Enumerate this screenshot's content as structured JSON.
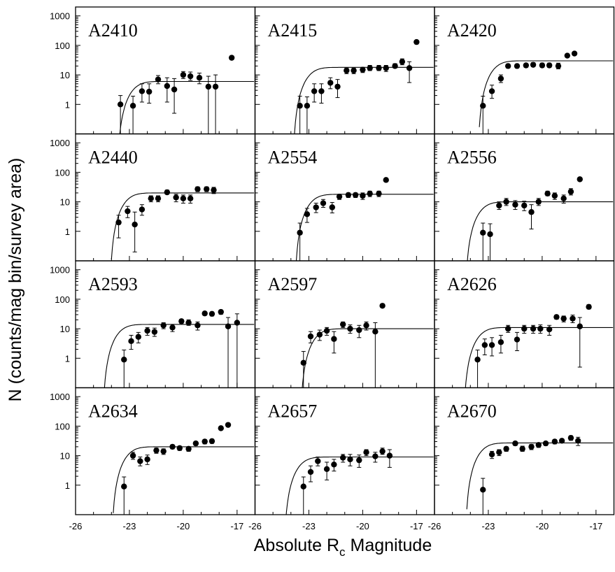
{
  "chart_data": {
    "type": "scatter",
    "layout": "small-multiples",
    "rows": 4,
    "cols": 3,
    "xlabel": "Absolute R",
    "xlabel_subscript": "c",
    "xlabel_suffix": " Magnitude",
    "ylabel": "N (counts/mag bin/survey area)",
    "xlim": [
      -26,
      -16
    ],
    "x_ticks": [
      -26,
      -23,
      -20,
      -17
    ],
    "y_scale": "log",
    "ylim": [
      0.1,
      2000
    ],
    "y_ticks": [
      1,
      10,
      100,
      1000
    ],
    "y_tick_labels": [
      "1",
      "10",
      "100",
      "1000"
    ],
    "panels": [
      {
        "name": "A2410",
        "points": [
          [
            -23.5,
            1,
            0.1,
            2
          ],
          [
            -22.8,
            0.9,
            0.1,
            1.9
          ],
          [
            -22.3,
            2.8,
            1.2,
            5
          ],
          [
            -21.9,
            2.7,
            1.1,
            5
          ],
          [
            -21.4,
            7,
            5,
            9.5
          ],
          [
            -20.9,
            4.2,
            1.2,
            8
          ],
          [
            -20.5,
            3.2,
            0.5,
            7.5
          ],
          [
            -20,
            10,
            7.5,
            13
          ],
          [
            -19.6,
            9,
            6.5,
            12.5
          ],
          [
            -19.1,
            8,
            5,
            11.5
          ],
          [
            -18.6,
            4,
            0.1,
            9
          ],
          [
            -18.2,
            4,
            0.1,
            10
          ],
          [
            -17.3,
            38,
            33,
            44
          ]
        ],
        "fit": {
          "amp": 6,
          "m0": -23.7
        }
      },
      {
        "name": "A2415",
        "points": [
          [
            -23.5,
            0.9,
            0.1,
            1.9
          ],
          [
            -23.1,
            0.9,
            0.1,
            1.8
          ],
          [
            -22.7,
            2.8,
            1.2,
            5
          ],
          [
            -22.3,
            2.8,
            1.1,
            5
          ],
          [
            -21.8,
            5.4,
            3.4,
            8
          ],
          [
            -21.4,
            4,
            1.7,
            7
          ],
          [
            -20.9,
            14,
            11,
            17
          ],
          [
            -20.5,
            14,
            11,
            17
          ],
          [
            -20,
            15,
            12,
            18
          ],
          [
            -19.6,
            17,
            14,
            21
          ],
          [
            -19.1,
            17,
            14,
            21
          ],
          [
            -18.7,
            17,
            13,
            21
          ],
          [
            -18.2,
            20,
            17,
            24
          ],
          [
            -17.8,
            28,
            22,
            35
          ],
          [
            -17.4,
            17,
            5.5,
            28
          ],
          [
            -17,
            130,
            125,
            135
          ]
        ],
        "fit": {
          "amp": 18,
          "m0": -23.9
        }
      },
      {
        "name": "A2420",
        "points": [
          [
            -23.3,
            0.9,
            0.1,
            1.9
          ],
          [
            -22.8,
            2.8,
            1.6,
            4.5
          ],
          [
            -22.3,
            7.5,
            5.5,
            10
          ],
          [
            -21.9,
            20,
            17,
            23
          ],
          [
            -21.4,
            20,
            17,
            23
          ],
          [
            -20.9,
            21,
            18,
            24
          ],
          [
            -20.5,
            22,
            19,
            26
          ],
          [
            -20,
            21,
            18,
            25
          ],
          [
            -19.6,
            21,
            18,
            25
          ],
          [
            -19.1,
            20,
            16,
            25
          ],
          [
            -18.6,
            45,
            40,
            50
          ],
          [
            -18.2,
            53,
            47,
            60
          ]
        ],
        "fit": {
          "amp": 30,
          "m0": -23.6
        }
      },
      {
        "name": "A2440",
        "points": [
          [
            -23.6,
            2,
            0.6,
            3.5
          ],
          [
            -23.1,
            4.8,
            2.9,
            7
          ],
          [
            -22.7,
            1.7,
            0.2,
            4.5
          ],
          [
            -22.3,
            5.5,
            3.5,
            8
          ],
          [
            -21.8,
            13,
            10,
            16
          ],
          [
            -21.4,
            13,
            10,
            16
          ],
          [
            -20.9,
            21,
            18,
            25
          ],
          [
            -20.4,
            14,
            10,
            18
          ],
          [
            -20,
            13,
            9,
            17
          ],
          [
            -19.6,
            13,
            9,
            17
          ],
          [
            -19.2,
            27,
            22,
            32
          ],
          [
            -18.7,
            27,
            22,
            32
          ],
          [
            -18.3,
            25,
            19,
            31
          ]
        ],
        "fit": {
          "amp": 20,
          "m0": -24.1
        }
      },
      {
        "name": "A2554",
        "points": [
          [
            -23.5,
            0.9,
            0.1,
            1.9
          ],
          [
            -23.1,
            3.8,
            2,
            6
          ],
          [
            -22.6,
            6.5,
            4.3,
            9
          ],
          [
            -22.2,
            9,
            6.5,
            12
          ],
          [
            -21.7,
            6.5,
            4.2,
            9.5
          ],
          [
            -21.3,
            15,
            12,
            18
          ],
          [
            -20.8,
            17,
            14,
            20
          ],
          [
            -20.4,
            17,
            14,
            20
          ],
          [
            -20,
            16,
            12,
            20
          ],
          [
            -19.6,
            19,
            15,
            23
          ],
          [
            -19.1,
            19,
            15,
            23
          ],
          [
            -18.7,
            55,
            52,
            58
          ]
        ],
        "fit": {
          "amp": 18,
          "m0": -23.8
        }
      },
      {
        "name": "A2556",
        "points": [
          [
            -23.3,
            0.9,
            0.1,
            1.9
          ],
          [
            -22.9,
            0.8,
            0.1,
            1.8
          ],
          [
            -22.4,
            7.5,
            5.5,
            10
          ],
          [
            -22,
            10,
            7.5,
            13
          ],
          [
            -21.5,
            8,
            5.5,
            11
          ],
          [
            -21,
            7.5,
            5,
            10.5
          ],
          [
            -20.6,
            4.5,
            1.2,
            8
          ],
          [
            -20.2,
            10,
            7.5,
            13
          ],
          [
            -19.7,
            19,
            16,
            23
          ],
          [
            -19.3,
            16,
            12,
            20
          ],
          [
            -18.8,
            13,
            9,
            17
          ],
          [
            -18.4,
            22,
            17,
            28
          ],
          [
            -17.9,
            58,
            54,
            62
          ]
        ],
        "fit": {
          "amp": 10,
          "m0": -24.3
        }
      },
      {
        "name": "A2593",
        "points": [
          [
            -23.3,
            0.9,
            0.1,
            1.9
          ],
          [
            -22.9,
            3.8,
            2,
            6
          ],
          [
            -22.5,
            5.3,
            3.3,
            7.5
          ],
          [
            -22,
            8.5,
            6,
            11
          ],
          [
            -21.6,
            7.8,
            5.5,
            10.5
          ],
          [
            -21.1,
            13,
            10,
            16
          ],
          [
            -20.6,
            11,
            8,
            14
          ],
          [
            -20.1,
            18,
            15,
            21
          ],
          [
            -19.7,
            16,
            13,
            20
          ],
          [
            -19.2,
            13,
            9,
            17
          ],
          [
            -18.8,
            33,
            29,
            37
          ],
          [
            -18.4,
            32,
            27,
            37
          ],
          [
            -17.9,
            37,
            31,
            43
          ],
          [
            -17.5,
            12,
            0.1,
            24
          ],
          [
            -17,
            16,
            0.1,
            32
          ]
        ],
        "fit": {
          "amp": 14,
          "m0": -24.5
        }
      },
      {
        "name": "A2597",
        "points": [
          [
            -23.3,
            0.7,
            0.1,
            1.7
          ],
          [
            -22.9,
            5.5,
            3.3,
            8
          ],
          [
            -22.4,
            6.3,
            4,
            9
          ],
          [
            -22,
            8.5,
            6,
            11
          ],
          [
            -21.6,
            4.5,
            1.5,
            8
          ],
          [
            -21.1,
            14,
            11,
            17
          ],
          [
            -20.7,
            10,
            7,
            13.5
          ],
          [
            -20.2,
            9,
            5,
            13
          ],
          [
            -19.8,
            13,
            9,
            17
          ],
          [
            -19.3,
            8,
            0.1,
            16
          ],
          [
            -18.9,
            60,
            57,
            63
          ]
        ],
        "fit": {
          "amp": 10,
          "m0": -23.5
        }
      },
      {
        "name": "A2626",
        "points": [
          [
            -23.6,
            0.9,
            0.1,
            1.9
          ],
          [
            -23.2,
            2.8,
            1.3,
            4.5
          ],
          [
            -22.8,
            2.8,
            1.2,
            5
          ],
          [
            -22.3,
            3.5,
            1.5,
            6
          ],
          [
            -21.9,
            10,
            7.5,
            13
          ],
          [
            -21.4,
            4.3,
            1.8,
            7.5
          ],
          [
            -21,
            10,
            7,
            13
          ],
          [
            -20.5,
            10,
            7,
            13
          ],
          [
            -20.1,
            10,
            7,
            13.5
          ],
          [
            -19.6,
            9.5,
            6,
            13
          ],
          [
            -19.2,
            25,
            21,
            29
          ],
          [
            -18.8,
            22,
            17,
            27
          ],
          [
            -18.3,
            22,
            16,
            29
          ],
          [
            -17.9,
            12,
            0.5,
            24
          ],
          [
            -17.4,
            55,
            47,
            65
          ]
        ],
        "fit": {
          "amp": 11,
          "m0": -24.4
        }
      },
      {
        "name": "A2634",
        "points": [
          [
            -23.3,
            0.9,
            0.1,
            1.9
          ],
          [
            -22.8,
            10,
            7.5,
            13
          ],
          [
            -22.4,
            6.5,
            4.5,
            9
          ],
          [
            -22,
            7.5,
            5,
            10.5
          ],
          [
            -21.5,
            15,
            12,
            18
          ],
          [
            -21.1,
            14,
            11,
            17
          ],
          [
            -20.6,
            20,
            17,
            23
          ],
          [
            -20.2,
            18,
            15,
            21
          ],
          [
            -19.7,
            17,
            14,
            20
          ],
          [
            -19.3,
            26,
            22,
            30
          ],
          [
            -18.8,
            30,
            25,
            35
          ],
          [
            -18.4,
            31,
            26,
            36
          ],
          [
            -17.9,
            85,
            80,
            90
          ],
          [
            -17.5,
            110,
            105,
            115
          ]
        ],
        "fit": {
          "amp": 20,
          "m0": -24.0
        }
      },
      {
        "name": "A2657",
        "points": [
          [
            -23.3,
            0.9,
            0.1,
            1.9
          ],
          [
            -22.9,
            2.8,
            1.3,
            4.5
          ],
          [
            -22.5,
            6.5,
            4.5,
            9
          ],
          [
            -22,
            3.5,
            1.5,
            6
          ],
          [
            -21.6,
            5,
            3,
            7.5
          ],
          [
            -21.1,
            8.5,
            6,
            11
          ],
          [
            -20.7,
            7.5,
            4.5,
            11
          ],
          [
            -20.2,
            7,
            4,
            10.5
          ],
          [
            -19.8,
            13,
            10,
            16
          ],
          [
            -19.3,
            9.5,
            6,
            13
          ],
          [
            -18.9,
            14,
            11,
            18
          ],
          [
            -18.5,
            10,
            4,
            16
          ]
        ],
        "fit": {
          "amp": 9,
          "m0": -24.4
        }
      },
      {
        "name": "A2670",
        "points": [
          [
            -23.3,
            0.7,
            0.1,
            1.7
          ],
          [
            -22.8,
            11,
            8,
            14
          ],
          [
            -22.4,
            13,
            10,
            16
          ],
          [
            -22,
            17,
            14,
            20
          ],
          [
            -21.5,
            26,
            22,
            30
          ],
          [
            -21.1,
            17,
            14,
            21
          ],
          [
            -20.6,
            20,
            16,
            24
          ],
          [
            -20.2,
            23,
            19,
            27
          ],
          [
            -19.8,
            26,
            22,
            30
          ],
          [
            -19.3,
            30,
            25,
            35
          ],
          [
            -18.9,
            32,
            27,
            37
          ],
          [
            -18.4,
            40,
            33,
            47
          ],
          [
            -18,
            32,
            22,
            42
          ]
        ],
        "fit": {
          "amp": 27,
          "m0": -24.3
        }
      }
    ]
  }
}
